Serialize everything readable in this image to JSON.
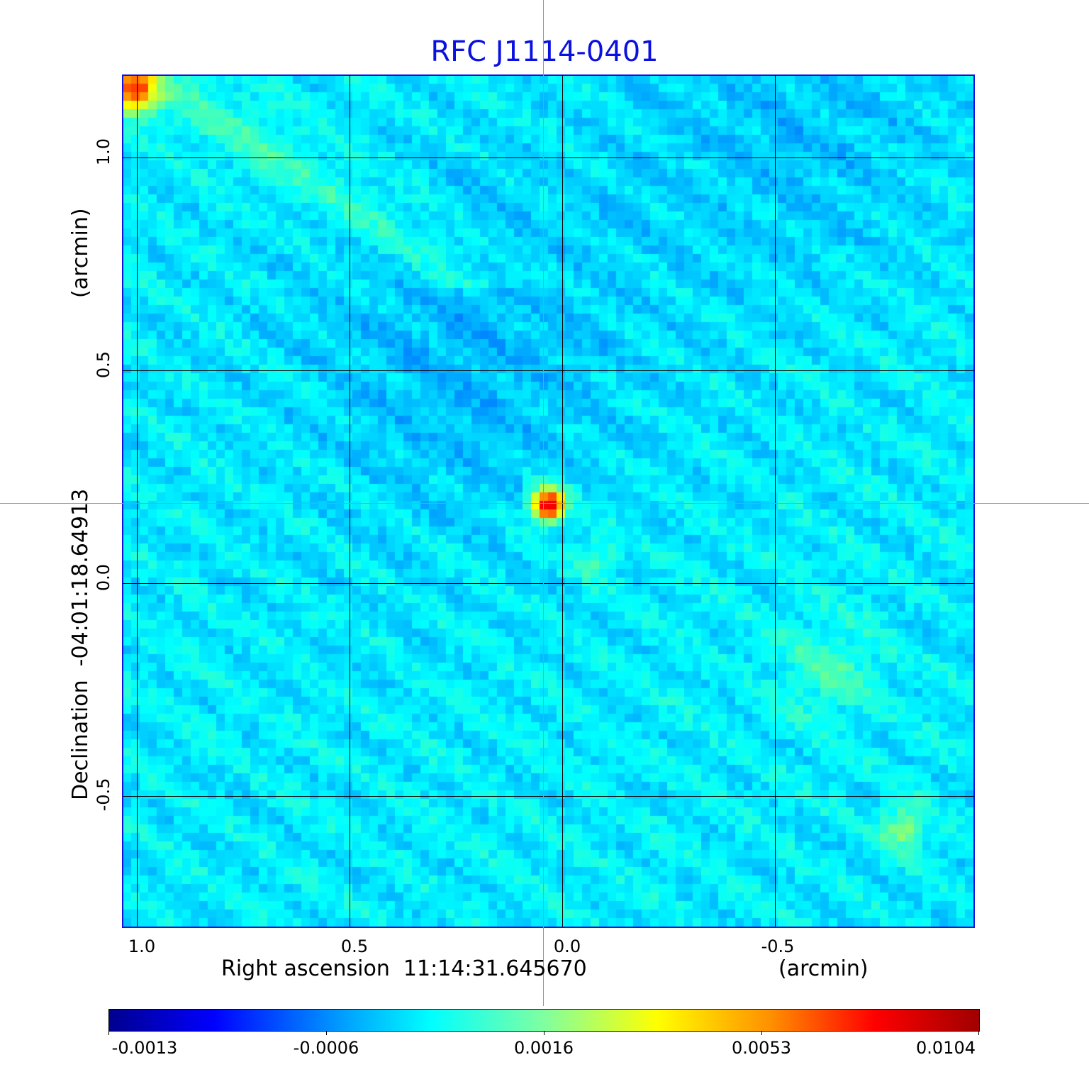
{
  "chart_data": {
    "type": "heatmap",
    "title": "RFC J1114-0401",
    "xlabel": "Right ascension  11:14:31.645670",
    "xunit": "(arcmin)",
    "ylabel": "Declination  -04:01:18.64913",
    "yunit": "(arcmin)",
    "xticks": [
      "1.0",
      "0.5",
      "0.0",
      "-0.5"
    ],
    "yticks": [
      "1.0",
      "0.5",
      "0.0",
      "-0.5"
    ],
    "xlim": [
      1.03,
      -0.97
    ],
    "ylim": [
      -0.81,
      1.19
    ],
    "grid": true,
    "colormap": "jet",
    "colorbar_ticks": [
      "-0.0013",
      "-0.0006",
      "0.0016",
      "0.0053",
      "0.0104"
    ],
    "colorbar_range": [
      -0.0013,
      0.0104
    ],
    "peak": {
      "x_arcmin": 0.04,
      "y_arcmin": 0.19,
      "value": 0.0104
    },
    "crosshair_color": "#33dd33",
    "title_color": "#0a10e0"
  }
}
